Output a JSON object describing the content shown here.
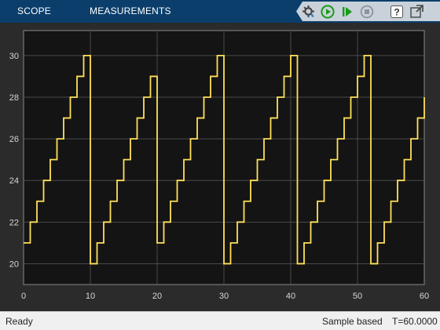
{
  "toolstrip": {
    "tabs": [
      {
        "label": "SCOPE"
      },
      {
        "label": "MEASUREMENTS"
      }
    ],
    "icons": [
      "settings-icon",
      "run-icon",
      "step-forward-icon",
      "stop-icon",
      "help-icon",
      "undock-icon"
    ]
  },
  "chart_data": {
    "type": "line",
    "x_ticks": [
      "0",
      "10",
      "20",
      "30",
      "40",
      "50",
      "60"
    ],
    "y_ticks": [
      "20",
      "22",
      "24",
      "26",
      "28",
      "30"
    ],
    "xlim": [
      0,
      60
    ],
    "ylim": [
      19.0,
      31.2
    ],
    "grid": true,
    "series": [
      {
        "color": "#ffe058",
        "style": "step",
        "points": [
          [
            0,
            21
          ],
          [
            1,
            21
          ],
          [
            1,
            22
          ],
          [
            2,
            22
          ],
          [
            2,
            23
          ],
          [
            3,
            23
          ],
          [
            3,
            24
          ],
          [
            4,
            24
          ],
          [
            4,
            25
          ],
          [
            5,
            25
          ],
          [
            5,
            26
          ],
          [
            6,
            26
          ],
          [
            6,
            27
          ],
          [
            7,
            27
          ],
          [
            7,
            28
          ],
          [
            8,
            28
          ],
          [
            8,
            29
          ],
          [
            9,
            29
          ],
          [
            9,
            30
          ],
          [
            10,
            30
          ],
          [
            10,
            20
          ],
          [
            11,
            20
          ],
          [
            11,
            21
          ],
          [
            12,
            21
          ],
          [
            12,
            22
          ],
          [
            13,
            22
          ],
          [
            13,
            23
          ],
          [
            14,
            23
          ],
          [
            14,
            24
          ],
          [
            15,
            24
          ],
          [
            15,
            25
          ],
          [
            16,
            25
          ],
          [
            16,
            26
          ],
          [
            17,
            26
          ],
          [
            17,
            27
          ],
          [
            18,
            27
          ],
          [
            18,
            28
          ],
          [
            19,
            28
          ],
          [
            19,
            29
          ],
          [
            20,
            29
          ],
          [
            20,
            21
          ],
          [
            21,
            21
          ],
          [
            21,
            22
          ],
          [
            22,
            22
          ],
          [
            22,
            23
          ],
          [
            23,
            23
          ],
          [
            23,
            24
          ],
          [
            24,
            24
          ],
          [
            24,
            25
          ],
          [
            25,
            25
          ],
          [
            25,
            26
          ],
          [
            26,
            26
          ],
          [
            26,
            27
          ],
          [
            27,
            27
          ],
          [
            27,
            28
          ],
          [
            28,
            28
          ],
          [
            28,
            29
          ],
          [
            29,
            29
          ],
          [
            29,
            30
          ],
          [
            30,
            30
          ],
          [
            30,
            20
          ],
          [
            31,
            20
          ],
          [
            31,
            21
          ],
          [
            32,
            21
          ],
          [
            32,
            22
          ],
          [
            33,
            22
          ],
          [
            33,
            23
          ],
          [
            34,
            23
          ],
          [
            34,
            24
          ],
          [
            35,
            24
          ],
          [
            35,
            25
          ],
          [
            36,
            25
          ],
          [
            36,
            26
          ],
          [
            37,
            26
          ],
          [
            37,
            27
          ],
          [
            38,
            27
          ],
          [
            38,
            28
          ],
          [
            39,
            28
          ],
          [
            39,
            29
          ],
          [
            40,
            29
          ],
          [
            40,
            30
          ],
          [
            41,
            30
          ],
          [
            41,
            20
          ],
          [
            42,
            20
          ],
          [
            42,
            21
          ],
          [
            43,
            21
          ],
          [
            43,
            22
          ],
          [
            44,
            22
          ],
          [
            44,
            23
          ],
          [
            45,
            23
          ],
          [
            45,
            24
          ],
          [
            46,
            24
          ],
          [
            46,
            25
          ],
          [
            47,
            25
          ],
          [
            47,
            26
          ],
          [
            48,
            26
          ],
          [
            48,
            27
          ],
          [
            49,
            27
          ],
          [
            49,
            28
          ],
          [
            50,
            28
          ],
          [
            50,
            29
          ],
          [
            51,
            29
          ],
          [
            51,
            30
          ],
          [
            52,
            30
          ],
          [
            52,
            20
          ],
          [
            53,
            20
          ],
          [
            53,
            21
          ],
          [
            54,
            21
          ],
          [
            54,
            22
          ],
          [
            55,
            22
          ],
          [
            55,
            23
          ],
          [
            56,
            23
          ],
          [
            56,
            24
          ],
          [
            57,
            24
          ],
          [
            57,
            25
          ],
          [
            58,
            25
          ],
          [
            58,
            26
          ],
          [
            59,
            26
          ],
          [
            59,
            27
          ],
          [
            60,
            27
          ],
          [
            60,
            28
          ]
        ]
      }
    ]
  },
  "statusbar": {
    "state": "Ready",
    "mode": "Sample based",
    "time": "T=60.0000"
  }
}
